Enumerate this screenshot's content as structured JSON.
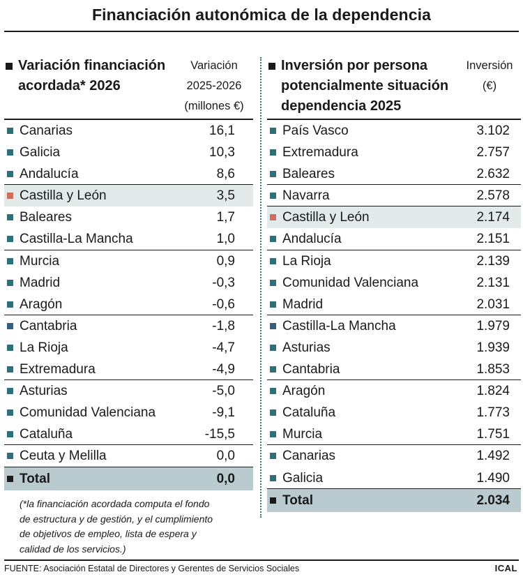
{
  "title": "Financiación autonómica de la dependencia",
  "left_table": {
    "heading_line1": "Variación financiación",
    "heading_line2": "acordada* 2026",
    "col_line1": "Variación",
    "col_line2": "2025-2026",
    "col_line3": "(millones €)",
    "rows": [
      {
        "name": "Canarias",
        "value": "16,1"
      },
      {
        "name": "Galicia",
        "value": "10,3"
      },
      {
        "name": "Andalucía",
        "value": "8,6"
      },
      {
        "name": "Castilla y León",
        "value": "3,5"
      },
      {
        "name": "Baleares",
        "value": "1,7"
      },
      {
        "name": "Castilla-La Mancha",
        "value": "1,0"
      },
      {
        "name": "Murcia",
        "value": "0,9"
      },
      {
        "name": "Madrid",
        "value": "-0,3"
      },
      {
        "name": "Aragón",
        "value": "-0,6"
      },
      {
        "name": "Cantabria",
        "value": "-1,8"
      },
      {
        "name": "La Rioja",
        "value": "-4,7"
      },
      {
        "name": "Extremadura",
        "value": "-4,9"
      },
      {
        "name": "Asturias",
        "value": "-5,0"
      },
      {
        "name": "Comunidad Valenciana",
        "value": "-9,1"
      },
      {
        "name": "Cataluña",
        "value": "-15,5"
      },
      {
        "name": "Ceuta y Melilla",
        "value": "0,0"
      }
    ],
    "total_label": "Total",
    "total_value": "0,0",
    "note_line1": "(*la financiación acordada computa el fondo",
    "note_line2": "de estructura y de gestión, y el cumplimiento",
    "note_line3": "de objetivos de empleo, lista de espera y",
    "note_line4": "calidad de los servicios.)"
  },
  "right_table": {
    "heading_line1": "Inversión por persona",
    "heading_line2": "potencialmente situación",
    "heading_line3": "dependencia 2025",
    "col_line1": "Inversión",
    "col_line2": "(€)",
    "rows": [
      {
        "name": "País Vasco",
        "value": "3.102"
      },
      {
        "name": "Extremadura",
        "value": "2.757"
      },
      {
        "name": "Baleares",
        "value": "2.632"
      },
      {
        "name": "Navarra",
        "value": "2.578"
      },
      {
        "name": "Castilla y León",
        "value": "2.174"
      },
      {
        "name": "Andalucía",
        "value": "2.151"
      },
      {
        "name": "La Rioja",
        "value": "2.139"
      },
      {
        "name": "Comunidad Valenciana",
        "value": "2.131"
      },
      {
        "name": "Madrid",
        "value": "2.031"
      },
      {
        "name": "Castilla-La Mancha",
        "value": "1.979"
      },
      {
        "name": "Asturias",
        "value": "1.939"
      },
      {
        "name": "Cantabria",
        "value": "1.853"
      },
      {
        "name": "Aragón",
        "value": "1.824"
      },
      {
        "name": "Cataluña",
        "value": "1.773"
      },
      {
        "name": "Murcia",
        "value": "1.751"
      },
      {
        "name": "Canarias",
        "value": "1.492"
      },
      {
        "name": "Galicia",
        "value": "1.490"
      }
    ],
    "total_label": "Total",
    "total_value": "2.034"
  },
  "colors": {
    "teal_marker": "#2e6f7a",
    "highlight_marker": "#cf6d5f",
    "highlight_row": "#e3eaea",
    "total_row": "#b9cbcf"
  },
  "footer": {
    "source": "FUENTE: Asociación Estatal de Directores y Gerentes de Servicios Sociales",
    "brand": "ICAL"
  }
}
